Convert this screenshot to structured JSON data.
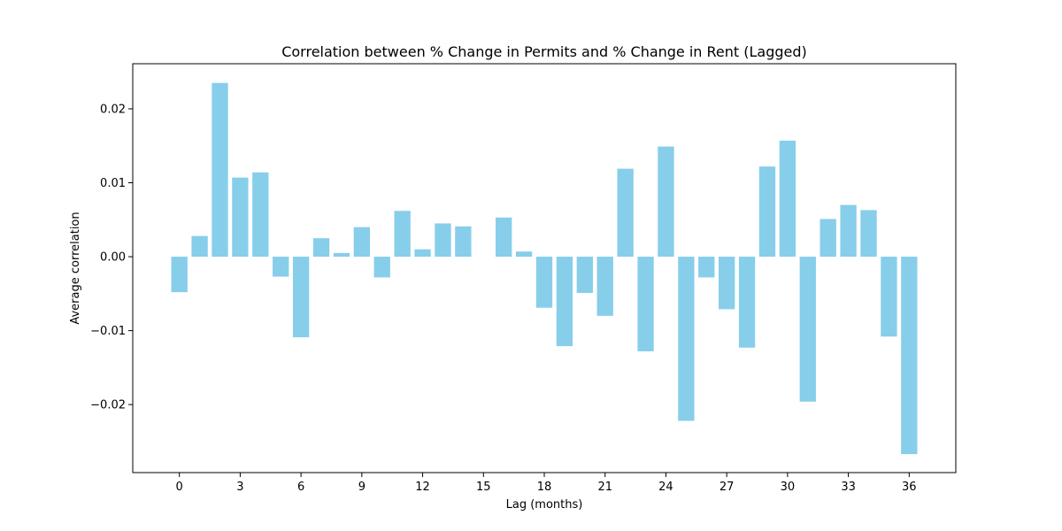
{
  "chart_data": {
    "type": "bar",
    "title": "Correlation between % Change in Permits and % Change in Rent (Lagged)",
    "xlabel": "Lag (months)",
    "ylabel": "Average correlation",
    "x": [
      0,
      1,
      2,
      3,
      4,
      5,
      6,
      7,
      8,
      9,
      10,
      11,
      12,
      13,
      14,
      15,
      16,
      17,
      18,
      19,
      20,
      21,
      22,
      23,
      24,
      25,
      26,
      27,
      28,
      29,
      30,
      31,
      32,
      33,
      34,
      35,
      36
    ],
    "values": [
      -0.0048,
      0.0028,
      0.0235,
      0.0107,
      0.0114,
      -0.0027,
      -0.0109,
      0.0025,
      0.0005,
      0.004,
      -0.0028,
      0.0062,
      0.001,
      0.0045,
      0.0041,
      0.0,
      0.0053,
      0.0007,
      -0.0069,
      -0.0121,
      -0.0049,
      -0.008,
      0.0119,
      -0.0128,
      0.0149,
      -0.0222,
      -0.0028,
      -0.0071,
      -0.0123,
      0.0122,
      0.0157,
      -0.0196,
      0.0051,
      0.007,
      0.0063,
      -0.0108,
      -0.0267
    ],
    "xticks": [
      0,
      3,
      6,
      9,
      12,
      15,
      18,
      21,
      24,
      27,
      30,
      33,
      36
    ],
    "xtick_labels": [
      "0",
      "3",
      "6",
      "9",
      "12",
      "15",
      "18",
      "21",
      "24",
      "27",
      "30",
      "33",
      "36"
    ],
    "yticks": [
      -0.02,
      -0.01,
      0.0,
      0.01,
      0.02
    ],
    "ytick_labels": [
      "−0.02",
      "−0.01",
      "0.00",
      "0.01",
      "0.02"
    ],
    "xlim": [
      -2.3,
      38.3
    ],
    "ylim": [
      -0.0292,
      0.0261
    ],
    "bar_color": "#87ceeb",
    "grid": false,
    "legend": false
  }
}
